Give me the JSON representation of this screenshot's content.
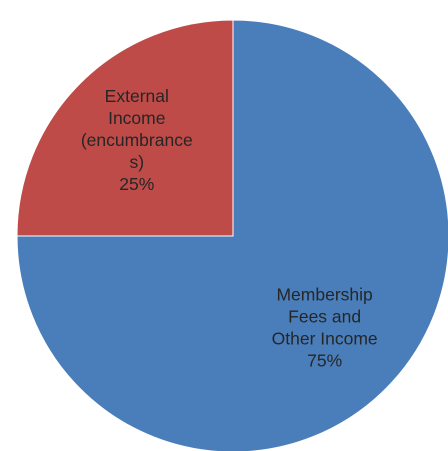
{
  "chart_data": {
    "type": "pie",
    "title": "",
    "slices": [
      {
        "label_lines": [
          "Membership",
          "Fees and",
          "Other Income"
        ],
        "value": 75,
        "value_label": "75%",
        "color": "#4a7ebb"
      },
      {
        "label_lines": [
          "External",
          "Income",
          "(encumbrance",
          "s)"
        ],
        "value": 25,
        "value_label": "25%",
        "color": "#be4b48"
      }
    ],
    "start_angle": "12 o'clock",
    "direction": "clockwise",
    "legend": "none"
  }
}
